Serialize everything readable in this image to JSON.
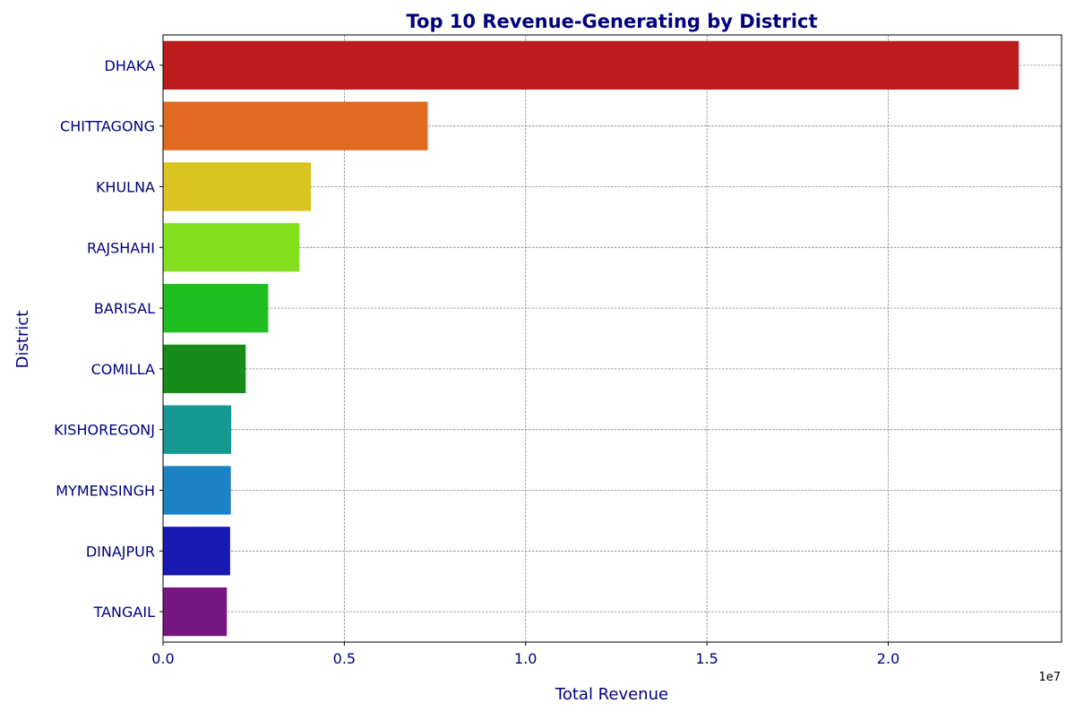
{
  "chart_data": {
    "type": "bar",
    "orientation": "horizontal",
    "title": "Top 10 Revenue-Generating by District",
    "xlabel": "Total Revenue",
    "ylabel": "District",
    "x_offset_text": "1e7",
    "categories": [
      "DHAKA",
      "CHITTAGONG",
      "KHULNA",
      "RAJSHAHI",
      "BARISAL",
      "COMILLA",
      "KISHOREGONJ",
      "MYMENSINGH",
      "DINAJPUR",
      "TANGAIL"
    ],
    "values": [
      23600000,
      7300000,
      4080000,
      3760000,
      2900000,
      2280000,
      1880000,
      1870000,
      1850000,
      1760000
    ],
    "bar_colors": [
      "#bd1c1c",
      "#e06a20",
      "#dac41f",
      "#84e01f",
      "#1fbe1f",
      "#188c18",
      "#169893",
      "#1c82c6",
      "#1818b2",
      "#781681"
    ],
    "xlim": [
      0,
      24780000
    ],
    "xticks": [
      0,
      5000000,
      10000000,
      15000000,
      20000000
    ],
    "xtick_labels": [
      "0.0",
      "0.5",
      "1.0",
      "1.5",
      "2.0"
    ],
    "grid": true,
    "colors": {
      "text": "#00007e",
      "title": "#00007e",
      "grid": "#808080",
      "axis": "#000000"
    }
  }
}
